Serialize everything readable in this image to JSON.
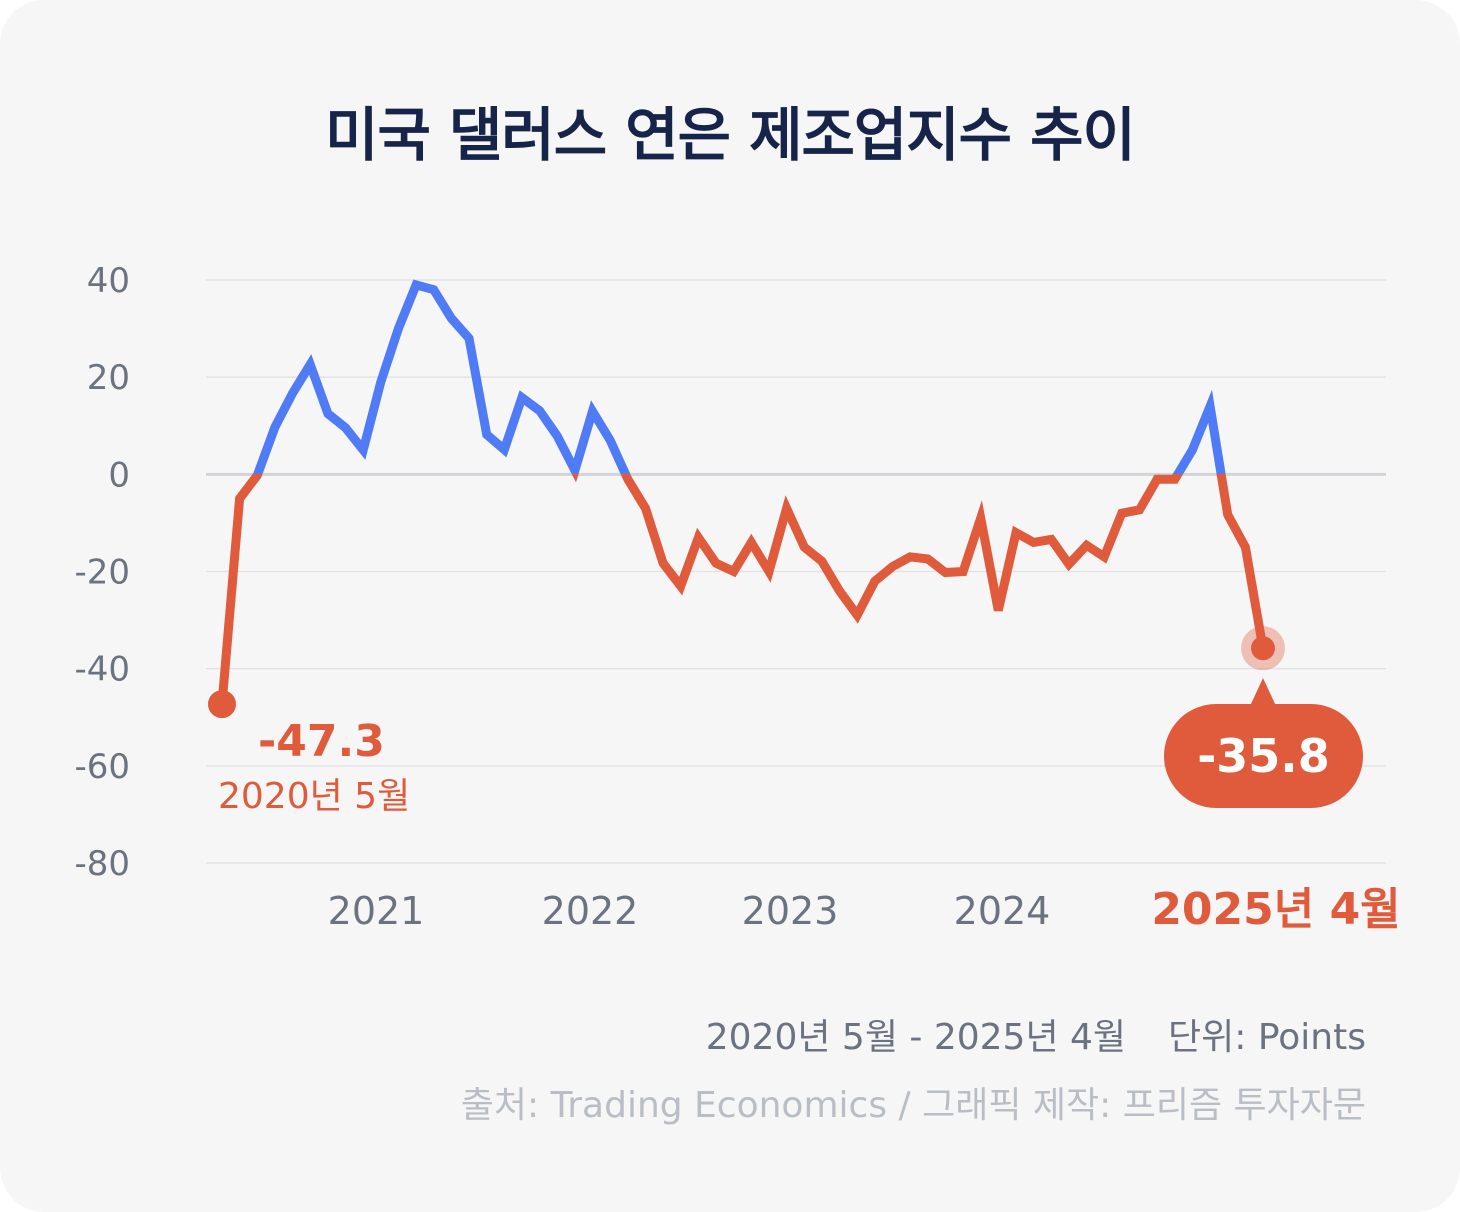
{
  "title": "미국 댈러스 연은 제조업지수 추이",
  "period": "2020년 5월 - 2025년 4월",
  "unit_label": "단위: Points",
  "source": "출처: Trading Economics / 그래픽 제작: 프리즘 투자자문",
  "colors": {
    "positive": "#4f7cf6",
    "negative": "#df5b3c",
    "title": "#16244a",
    "axis_text": "#6b7280",
    "source_text": "#b9bdc6",
    "background": "#f6f6f6"
  },
  "chart_data": {
    "type": "line",
    "title": "미국 댈러스 연은 제조업지수 추이",
    "xlabel": "",
    "ylabel": "",
    "ylim": [
      -80,
      40
    ],
    "yticks": [
      40,
      20,
      0,
      -20,
      -40,
      -60,
      -80
    ],
    "ytick_labels": [
      "40",
      "20",
      "0",
      "-20",
      "-40",
      "-60",
      "-80"
    ],
    "xticks": [
      "2021",
      "2022",
      "2023",
      "2024",
      "2025년 4월"
    ],
    "x_start": "2020-05",
    "x_end": "2025-04",
    "grid": true,
    "annotations": {
      "start": {
        "value": "-47.3",
        "date": "2020년 5월"
      },
      "end": {
        "value": "-35.8"
      }
    },
    "series": [
      {
        "values": [
          -47.3,
          -5,
          -0.2,
          9.7,
          16.7,
          22.6,
          12.5,
          9.6,
          5,
          19,
          30,
          39,
          38,
          32.1,
          28,
          8.2,
          5.1,
          15.8,
          13.1,
          7.9,
          0.8,
          13,
          7,
          -1,
          -7,
          -18.3,
          -23,
          -13,
          -18.3,
          -20,
          -14,
          -20,
          -7,
          -15,
          -17.9,
          -24,
          -29,
          -22,
          -19,
          -17,
          -17.4,
          -20.2,
          -20,
          -9,
          -28,
          -12,
          -14,
          -13.4,
          -18.5,
          -14.6,
          -17,
          -8,
          -7.3,
          -1,
          -1,
          5,
          14,
          -8.3,
          -15,
          -35.8
        ]
      }
    ]
  }
}
